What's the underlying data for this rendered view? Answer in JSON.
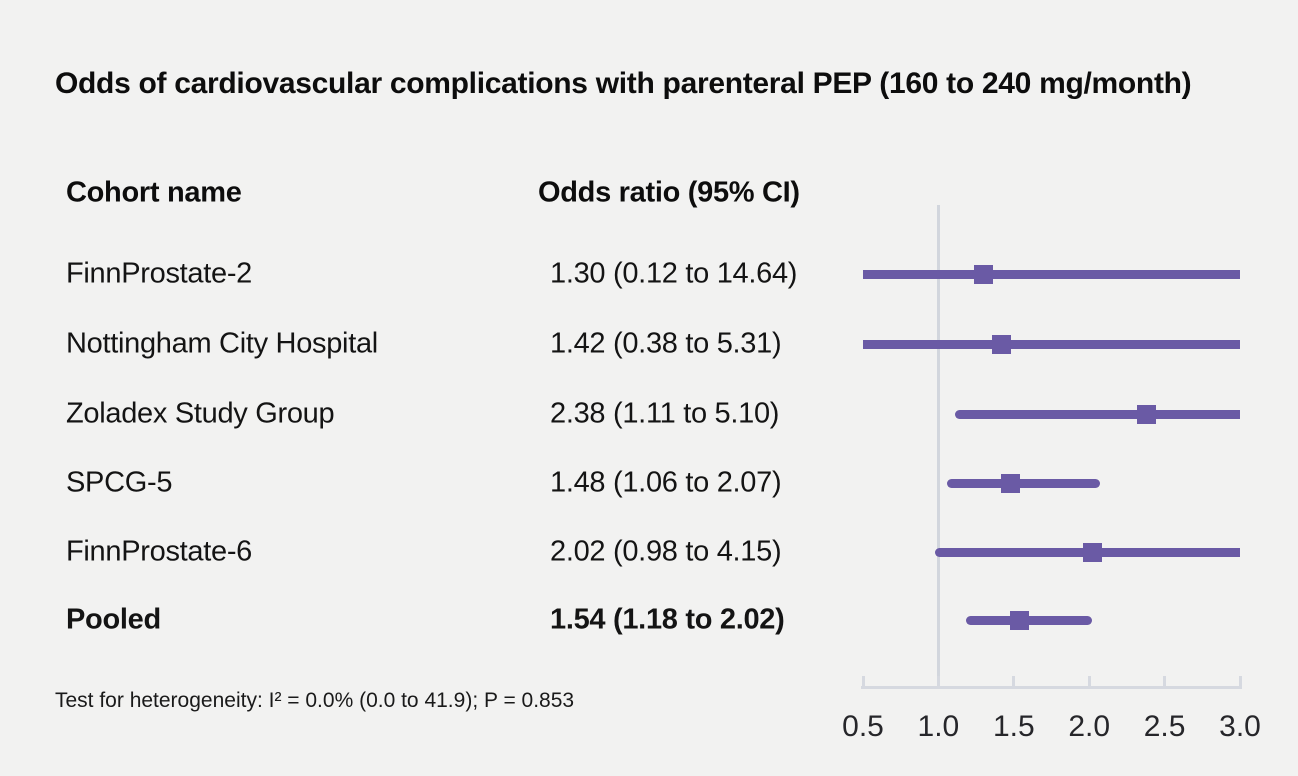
{
  "title": "Odds of cardiovascular complications with parenteral PEP (160 to 240 mg/month)",
  "columns": {
    "cohort": "Cohort name",
    "odds_ratio": "Odds ratio (95% CI)"
  },
  "footnote": "Test for heterogeneity: I² = 0.0% (0.0 to 41.9); P = 0.853",
  "colors": {
    "marker": "#6a5aa5",
    "reference_line": "#d2d6dd",
    "axis": "#d6d9e0",
    "background": "#f2f2f1",
    "text": "#111111"
  },
  "chart_data": {
    "type": "forest",
    "marker": "square",
    "xlabel": "",
    "ylabel": "",
    "scale": "linear",
    "axis": {
      "min": 0.5,
      "max": 3.0,
      "reference": 1.0,
      "ticks": [
        {
          "v": 0.5,
          "label": "0.5"
        },
        {
          "v": 1.0,
          "label": "1.0"
        },
        {
          "v": 1.5,
          "label": "1.5"
        },
        {
          "v": 2.0,
          "label": "2.0"
        },
        {
          "v": 2.5,
          "label": "2.5"
        },
        {
          "v": 3.0,
          "label": "3.0"
        }
      ]
    },
    "rows": [
      {
        "label": "FinnProstate-2",
        "or": 1.3,
        "ci_low": 0.12,
        "ci_high": 14.64,
        "display": "1.30 (0.12 to 14.64)",
        "bold": false
      },
      {
        "label": "Nottingham City Hospital",
        "or": 1.42,
        "ci_low": 0.38,
        "ci_high": 5.31,
        "display": "1.42 (0.38 to 5.31)",
        "bold": false
      },
      {
        "label": "Zoladex Study Group",
        "or": 2.38,
        "ci_low": 1.11,
        "ci_high": 5.1,
        "display": "2.38 (1.11 to 5.10)",
        "bold": false
      },
      {
        "label": "SPCG-5",
        "or": 1.48,
        "ci_low": 1.06,
        "ci_high": 2.07,
        "display": "1.48 (1.06 to 2.07)",
        "bold": false
      },
      {
        "label": "FinnProstate-6",
        "or": 2.02,
        "ci_low": 0.98,
        "ci_high": 4.15,
        "display": "2.02 (0.98 to 4.15)",
        "bold": false
      },
      {
        "label": "Pooled",
        "or": 1.54,
        "ci_low": 1.18,
        "ci_high": 2.02,
        "display": "1.54 (1.18 to 2.02)",
        "bold": true
      }
    ]
  }
}
